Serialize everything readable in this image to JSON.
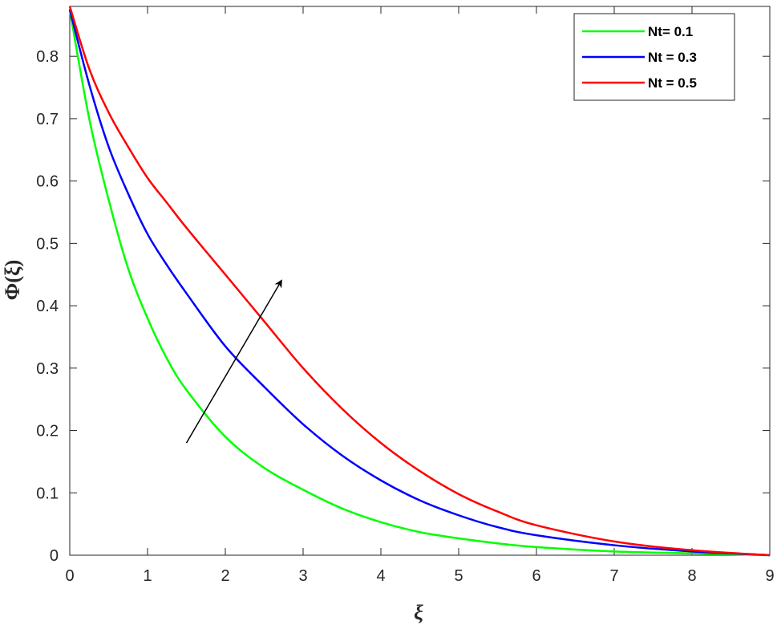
{
  "chart_data": {
    "type": "line",
    "xlabel": "ξ",
    "ylabel": "Φ(ξ)",
    "xlim": [
      0,
      9
    ],
    "ylim": [
      0,
      0.88
    ],
    "xticks": [
      0,
      1,
      2,
      3,
      4,
      5,
      6,
      7,
      8,
      9
    ],
    "yticks": [
      0,
      0.1,
      0.2,
      0.3,
      0.4,
      0.5,
      0.6,
      0.7,
      0.8
    ],
    "grid": false,
    "legend_position": "top-right",
    "x": [
      0,
      0.25,
      0.5,
      0.75,
      1,
      1.25,
      1.5,
      2,
      2.5,
      3,
      3.5,
      4,
      4.5,
      5,
      5.5,
      6,
      7,
      8,
      9
    ],
    "series": [
      {
        "name": "Nt= 0.1",
        "color": "#00ff00",
        "values": [
          0.875,
          0.7,
          0.57,
          0.46,
          0.38,
          0.315,
          0.265,
          0.19,
          0.14,
          0.105,
          0.075,
          0.053,
          0.037,
          0.027,
          0.019,
          0.013,
          0.006,
          0.003,
          0.0
        ]
      },
      {
        "name": "Nt = 0.3",
        "color": "#0000ff",
        "values": [
          0.875,
          0.755,
          0.655,
          0.58,
          0.515,
          0.465,
          0.42,
          0.335,
          0.27,
          0.21,
          0.16,
          0.12,
          0.088,
          0.064,
          0.045,
          0.032,
          0.016,
          0.006,
          0.0
        ]
      },
      {
        "name": "Nt = 0.5",
        "color": "#ff0000",
        "values": [
          0.88,
          0.78,
          0.71,
          0.655,
          0.605,
          0.565,
          0.525,
          0.45,
          0.375,
          0.3,
          0.235,
          0.18,
          0.135,
          0.098,
          0.07,
          0.048,
          0.022,
          0.008,
          0.0
        ]
      }
    ],
    "annotations": [
      {
        "type": "arrow",
        "from": [
          1.5,
          0.18
        ],
        "to": [
          2.72,
          0.44
        ]
      }
    ]
  }
}
